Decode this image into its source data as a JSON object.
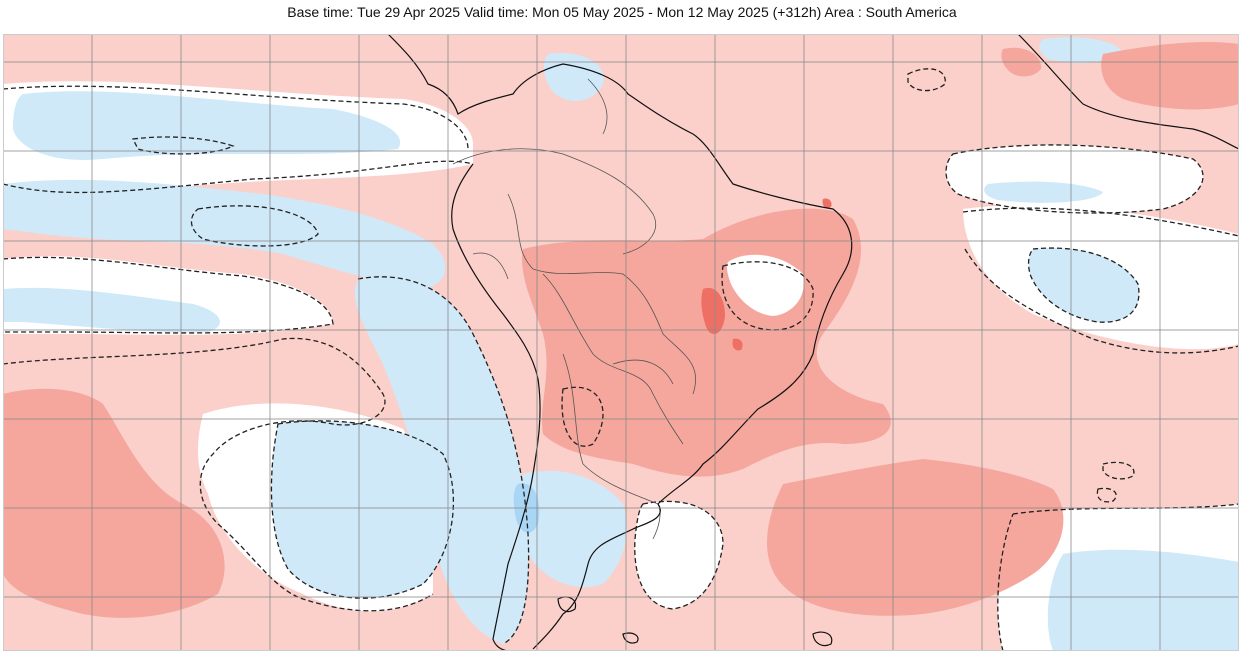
{
  "header": {
    "title": "Base time: Tue 29 Apr 2025 Valid time: Mon 05 May 2025 - Mon 12 May 2025 (+312h) Area : South America"
  },
  "map": {
    "region": "South America",
    "colors": {
      "background": "#ffffff",
      "warm_1": "#fbd0cb",
      "warm_2": "#f6a79d",
      "warm_3": "#ee6f63",
      "cool_1": "#cfe9f8",
      "cool_2": "#a9d6f4",
      "coast": "#111111",
      "border": "#555555",
      "grid": "#8a8a8a",
      "contour": "#222222"
    }
  }
}
